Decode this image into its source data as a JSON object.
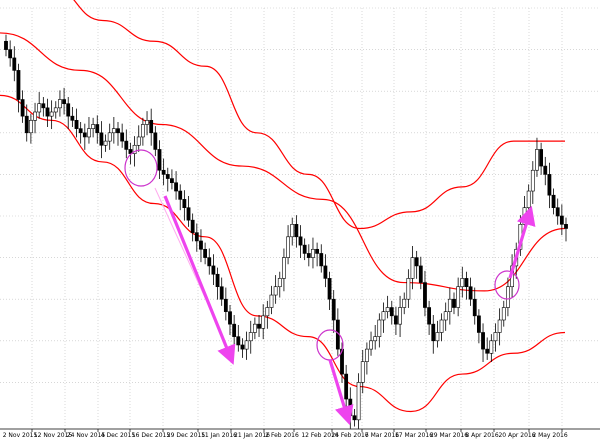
{
  "chart_data": {
    "type": "candlestick",
    "title": "",
    "xlabel": "",
    "ylabel": "",
    "grid": true,
    "x_tick_labels": [
      "2 Nov 2015",
      "12 Nov 2015",
      "24 Nov 2015",
      "4 Dec 2015",
      "16 Dec 2015",
      "29 Dec 2015",
      "11 Jan 2016",
      "21 Jan 2016",
      "2 Feb 2016",
      "12 Feb 2016",
      "24 Feb 2016",
      "7 Mar 2016",
      "17 Mar 2016",
      "29 Mar 2016",
      "8 Apr 2016",
      "20 Apr 2016",
      "2 May 2016"
    ],
    "price_range": [
      0,
      100
    ],
    "closes": [
      90,
      88,
      85,
      78,
      74,
      70,
      73,
      75,
      77,
      76,
      74,
      75,
      76,
      78,
      77,
      74,
      73,
      71,
      70,
      69,
      71,
      72,
      70,
      67,
      68,
      70,
      71,
      70,
      68,
      66,
      65,
      67,
      69,
      72,
      73,
      70,
      66,
      61,
      60,
      59,
      58,
      56,
      54,
      52,
      49,
      46,
      44,
      42,
      40,
      38,
      36,
      33,
      30,
      27,
      24,
      21,
      19,
      18,
      20,
      22,
      24,
      23,
      26,
      28,
      31,
      33,
      35,
      40,
      45,
      48,
      45,
      43,
      41,
      40,
      42,
      41,
      38,
      35,
      30,
      25,
      18,
      12,
      6,
      2,
      1,
      10,
      15,
      18,
      20,
      21,
      25,
      27,
      28,
      26,
      24,
      28,
      30,
      35,
      40,
      38,
      34,
      28,
      24,
      20,
      22,
      25,
      27,
      30,
      28,
      33,
      35,
      33,
      30,
      26,
      22,
      18,
      17,
      20,
      22,
      25,
      28,
      33,
      38,
      42,
      48,
      52,
      56,
      61,
      66,
      62,
      60,
      55,
      52,
      50,
      48,
      47
    ],
    "bollinger": {
      "middle": [
        94,
        85,
        72,
        62,
        54,
        34,
        32,
        47
      ],
      "upper": [
        110,
        105,
        97,
        92,
        86,
        70,
        60,
        47,
        51,
        57,
        68,
        68
      ],
      "lower": [
        79,
        73,
        63,
        53,
        45,
        26,
        21,
        9,
        3,
        12,
        17,
        22
      ]
    },
    "annotations": [
      {
        "type": "circle",
        "near": "16 Dec 2015",
        "color": "#cc33cc"
      },
      {
        "type": "arrow",
        "from": "16 Dec 2015",
        "to": "11 Jan 2016",
        "direction": "down",
        "color": "#ee44ee"
      },
      {
        "type": "circle",
        "near": "24 Feb 2016",
        "color": "#cc33cc"
      },
      {
        "type": "arrow",
        "from": "12 Feb 2016",
        "to": "24 Feb 2016",
        "direction": "down",
        "color": "#ee44ee"
      },
      {
        "type": "circle",
        "near": "20 Apr 2016",
        "color": "#cc33cc"
      },
      {
        "type": "arrow",
        "from": "20 Apr 2016",
        "to": "2 May 2016",
        "direction": "up",
        "color": "#ee44ee"
      }
    ],
    "colors": {
      "background": "#ffffff",
      "grid": "#c0c0c0",
      "bands": "#ff0000",
      "candle": "#000000",
      "annotation": "#ee44ee"
    }
  }
}
